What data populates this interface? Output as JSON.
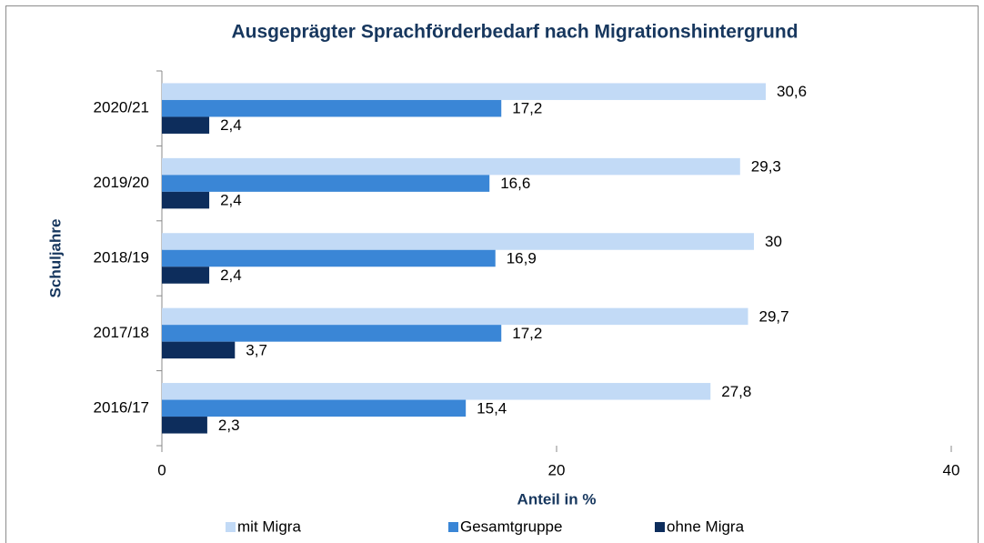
{
  "chart_data": {
    "type": "bar",
    "orientation": "horizontal",
    "title": "Ausgeprägter Sprachförderbedarf nach Migrationshintergrund",
    "x_label": "Anteil in %",
    "y_label": "Schuljahre",
    "categories": [
      "2020/21",
      "2019/20",
      "2018/19",
      "2017/18",
      "2016/17"
    ],
    "series": [
      {
        "name": "mit Migra",
        "color": "#c2daf6",
        "values": [
          30.6,
          29.3,
          30,
          29.7,
          27.8
        ],
        "value_labels": [
          "30,6",
          "29,3",
          "30",
          "29,7",
          "27,8"
        ]
      },
      {
        "name": "Gesamtgruppe",
        "color": "#3a86d6",
        "values": [
          17.2,
          16.6,
          16.9,
          17.2,
          15.4
        ],
        "value_labels": [
          "17,2",
          "16,6",
          "16,9",
          "17,2",
          "15,4"
        ]
      },
      {
        "name": "ohne Migra",
        "color": "#0d2d5c",
        "values": [
          2.4,
          2.4,
          2.4,
          3.7,
          2.3
        ],
        "value_labels": [
          "2,4",
          "2,4",
          "2,4",
          "3,7",
          "2,3"
        ]
      }
    ],
    "xlim": [
      0,
      40
    ],
    "xticks": [
      0,
      20,
      40
    ],
    "grid": false,
    "legend": "bottom"
  }
}
